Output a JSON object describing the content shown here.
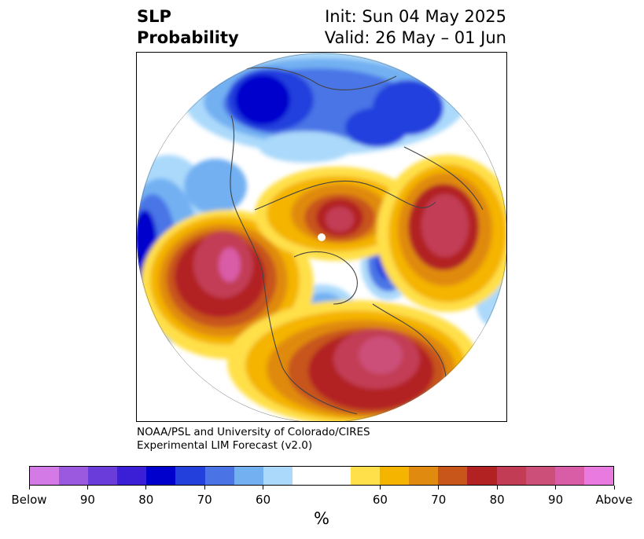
{
  "title": {
    "line1": "SLP",
    "line2": "Probability",
    "init": "Init: Sun 04 May 2025",
    "valid": "Valid: 26 May – 01 Jun"
  },
  "credit": {
    "line1": "NOAA/PSL and University of Colorado/CIRES",
    "line2": "Experimental LIM Forecast (v2.0)"
  },
  "colorbar": {
    "unit": "%",
    "labels": [
      "Below",
      "90",
      "80",
      "70",
      "60",
      "60",
      "70",
      "80",
      "90",
      "Above"
    ],
    "colors": [
      "#d47ae6",
      "#9b59e0",
      "#6a3ddb",
      "#3a1fd6",
      "#0000cc",
      "#2340dd",
      "#4a74e6",
      "#72b0f2",
      "#aad9fb",
      "#ffffff",
      "#ffe04a",
      "#f4b400",
      "#e08a10",
      "#c8551a",
      "#b22222",
      "#c23c55",
      "#cc4f79",
      "#d95ca6",
      "#e87ae0"
    ]
  },
  "map": {
    "projection": "north polar stereographic",
    "field": "SLP probability anomaly"
  }
}
